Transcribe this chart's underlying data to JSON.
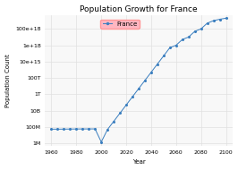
{
  "title": "Population Growth for France",
  "xlabel": "Year",
  "ylabel": "Population Count",
  "legend_label": "France",
  "line_color": "#3a7ebf",
  "marker_color": "#3a7ebf",
  "legend_facecolor": "#ffb6c1",
  "legend_edgecolor": "#ff9999",
  "plot_bgcolor": "#f8f8f8",
  "fig_bgcolor": "#ffffff",
  "grid_color": "#e0e0e0",
  "x_data": [
    1960,
    1965,
    1970,
    1975,
    1980,
    1985,
    1990,
    1995,
    2000,
    2005,
    2010,
    2015,
    2020,
    2025,
    2030,
    2035,
    2040,
    2045,
    2050,
    2055,
    2060,
    2065,
    2070,
    2075,
    2080,
    2085,
    2090,
    2095,
    2100
  ],
  "y_data": [
    55000000.0,
    55000000.0,
    56000000.0,
    57000000.0,
    58000000.0,
    58500000.0,
    59000000.0,
    59500000.0,
    1500000.0,
    50000000.0,
    500000000.0,
    5000000000.0,
    50000000000.0,
    500000000000.0,
    5000000000000.0,
    50000000000000.0,
    500000000000000.0,
    5000000000000000.0,
    5e+16,
    5e+17,
    1e+18,
    5e+18,
    1e+19,
    5e+19,
    1e+20,
    5e+20,
    1e+21,
    1.5e+21,
    2e+21
  ],
  "xticks": [
    1960,
    1980,
    2000,
    2020,
    2040,
    2060,
    2080,
    2100
  ],
  "yticks": [
    1000000.0,
    100000000.0,
    10000000000.0,
    1000000000000.0,
    100000000000000.0,
    1e+16,
    1e+18,
    1e+20
  ],
  "ytick_labels": [
    "1M",
    "100M",
    "10B",
    "1T",
    "100T",
    "10e+15",
    "1e+18",
    "100e+18"
  ],
  "ylim_min": 500000.0,
  "ylim_max": 5e+21,
  "figsize": [
    2.66,
    1.9
  ],
  "dpi": 100,
  "title_fontsize": 6.5,
  "axis_label_fontsize": 5,
  "tick_fontsize": 4.5,
  "legend_fontsize": 5
}
